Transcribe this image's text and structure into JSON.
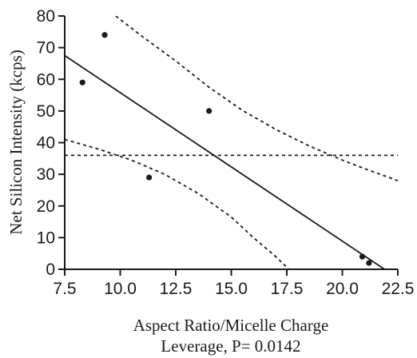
{
  "chart_data": {
    "type": "scatter",
    "title": "",
    "xlabel": "Aspect Ratio/Micelle Charge",
    "ylabel": "Net Silicon Intensity (kcps)",
    "subtitle": "Leverage, P= 0.0142",
    "xlim": [
      7.5,
      22.5
    ],
    "ylim": [
      0,
      80
    ],
    "xticks": [
      7.5,
      10.0,
      12.5,
      15.0,
      17.5,
      20.0,
      22.5
    ],
    "xtick_labels": [
      "7.5",
      "10.0",
      "12.5",
      "15.0",
      "17.5",
      "20.0",
      "22.5"
    ],
    "yticks": [
      0,
      10,
      20,
      30,
      40,
      50,
      60,
      70,
      80
    ],
    "ytick_labels": [
      "0",
      "10",
      "20",
      "30",
      "40",
      "50",
      "60",
      "70",
      "80"
    ],
    "grid": false,
    "points": [
      {
        "x": 8.3,
        "y": 59
      },
      {
        "x": 9.3,
        "y": 74
      },
      {
        "x": 11.3,
        "y": 29
      },
      {
        "x": 14.0,
        "y": 50
      },
      {
        "x": 20.9,
        "y": 4
      },
      {
        "x": 21.2,
        "y": 2
      }
    ],
    "fit_line": {
      "x": [
        7.5,
        21.9
      ],
      "y": [
        67.5,
        0
      ]
    },
    "mean_line": {
      "y": 36
    },
    "confidence_upper": {
      "x": [
        9.8,
        11.0,
        12.5,
        14.0,
        15.5,
        17.0,
        18.5,
        20.0,
        21.0,
        22.5
      ],
      "y": [
        80,
        73.5,
        65.8,
        57.5,
        50.2,
        44.2,
        39.0,
        34.5,
        31.8,
        28.0
      ]
    },
    "confidence_lower": {
      "x": [
        7.5,
        9.0,
        10.5,
        12.0,
        13.5,
        15.0,
        16.0,
        17.0,
        17.6
      ],
      "y": [
        41.0,
        38.0,
        34.5,
        30.0,
        24.0,
        16.5,
        10.0,
        4.0,
        0
      ]
    },
    "colors": {
      "ink": "#1a1a1a",
      "background": "#ffffff"
    }
  }
}
